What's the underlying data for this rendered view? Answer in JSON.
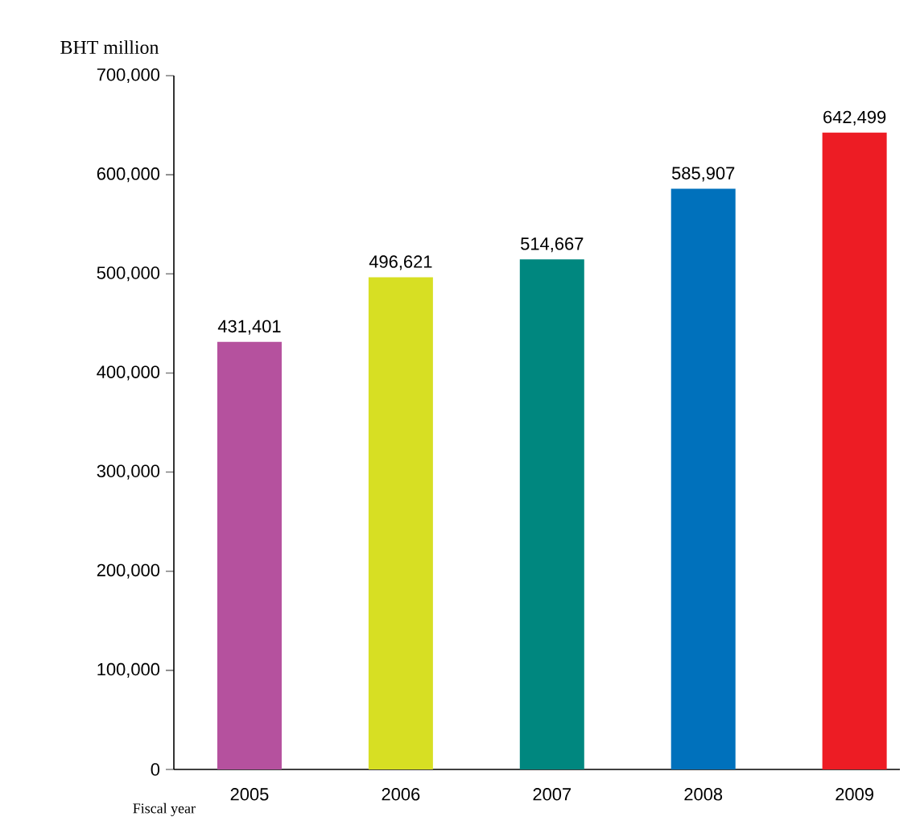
{
  "chart_data": {
    "type": "bar",
    "ylabel": "BHT million",
    "xlabel": "Fiscal year",
    "categories": [
      "2005",
      "2006",
      "2007",
      "2008",
      "2009"
    ],
    "values": [
      431401,
      496621,
      514667,
      585907,
      642499
    ],
    "value_labels": [
      "431,401",
      "496,621",
      "514,667",
      "585,907",
      "642,499"
    ],
    "colors": [
      "#b5519e",
      "#d7df23",
      "#00877f",
      "#0071bc",
      "#ed1c24"
    ],
    "ylim": [
      0,
      700000
    ],
    "yticks": [
      {
        "value": 0,
        "label": "0"
      },
      {
        "value": 100000,
        "label": "100,000"
      },
      {
        "value": 200000,
        "label": "200,000"
      },
      {
        "value": 300000,
        "label": "300,000"
      },
      {
        "value": 400000,
        "label": "400,000"
      },
      {
        "value": 500000,
        "label": "500,000"
      },
      {
        "value": 600000,
        "label": "600,000"
      },
      {
        "value": 700000,
        "label": "700,000"
      }
    ],
    "grid": false
  }
}
